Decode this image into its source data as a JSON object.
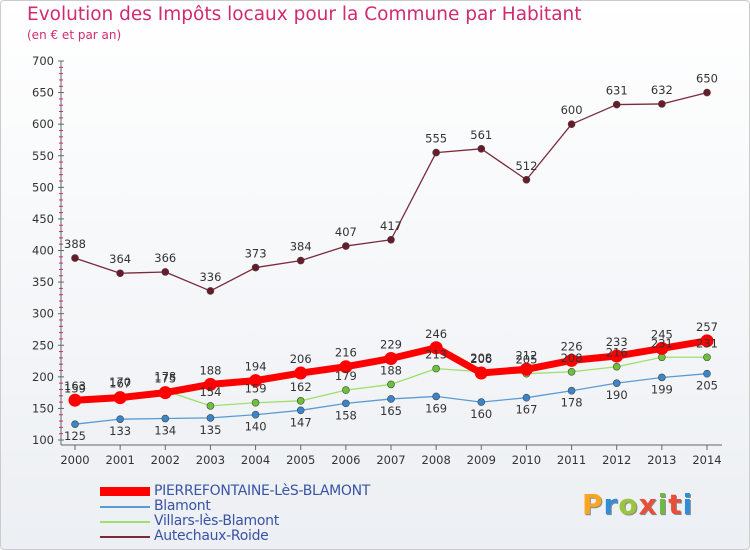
{
  "title": "Evolution des Impôts locaux pour la Commune par Habitant",
  "subtitle": "(en € et par an)",
  "brand": "Proxiti",
  "brand_colors": [
    "#f6a623",
    "#2f8fd6",
    "#9bc53d",
    "#e94e3a",
    "#6fba45",
    "#e94e3a",
    "#2f8fd6"
  ],
  "chart_data": {
    "type": "line",
    "x": [
      "2000",
      "2001",
      "2002",
      "2003",
      "2004",
      "2005",
      "2006",
      "2007",
      "2008",
      "2009",
      "2010",
      "2011",
      "2012",
      "2013",
      "2014"
    ],
    "ylim": [
      100,
      700
    ],
    "yticks": [
      100,
      150,
      200,
      250,
      300,
      350,
      400,
      450,
      500,
      550,
      600,
      650,
      700
    ],
    "grid": false,
    "legend_position": "bottom-left",
    "series": [
      {
        "name": "PIERREFONTAINE-LèS-BLAMONT",
        "color": "#ff0000",
        "marker": "#ff0000",
        "emphasis": true,
        "values": [
          163,
          167,
          175,
          188,
          194,
          206,
          216,
          229,
          246,
          206,
          212,
          226,
          233,
          245,
          257
        ]
      },
      {
        "name": "Blamont",
        "color": "#5a9bd4",
        "marker": "#3a86c8",
        "values": [
          125,
          133,
          134,
          135,
          140,
          147,
          158,
          165,
          169,
          160,
          167,
          178,
          190,
          199,
          205
        ]
      },
      {
        "name": "Villars-lès-Blamont",
        "color": "#9de06a",
        "marker": "#6cc23a",
        "values": [
          159,
          170,
          178,
          154,
          159,
          162,
          179,
          188,
          213,
          208,
          205,
          208,
          216,
          231,
          231
        ]
      },
      {
        "name": "Autechaux-Roide",
        "color": "#7a2a3a",
        "marker": "#6a1a2a",
        "values": [
          388,
          364,
          366,
          336,
          373,
          384,
          407,
          417,
          555,
          561,
          512,
          600,
          631,
          632,
          650
        ]
      }
    ]
  }
}
